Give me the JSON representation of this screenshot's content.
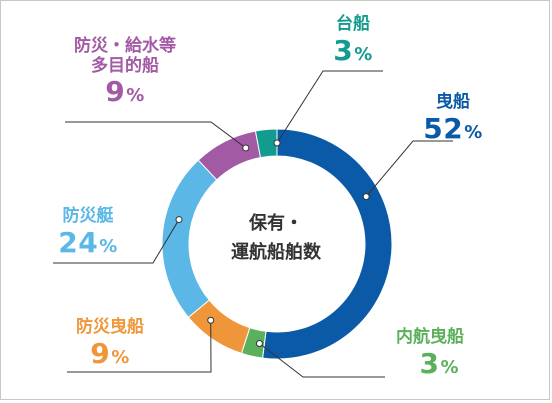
{
  "chart_data": {
    "type": "pie",
    "center_label_lines": [
      "保有・",
      "運航船舶数"
    ],
    "slices": [
      {
        "name": "曳船",
        "value": 52,
        "color": "#0b5aa8"
      },
      {
        "name": "内航曳船",
        "value": 3,
        "color": "#5bb05b"
      },
      {
        "name": "防災曳船",
        "value": 9,
        "color": "#f0963a"
      },
      {
        "name": "防災艇",
        "value": 24,
        "color": "#5bb8e6"
      },
      {
        "name": "防災・給水等\n多目的船",
        "value": 9,
        "color": "#a35aa5"
      },
      {
        "name": "台船",
        "value": 3,
        "color": "#139b8f"
      }
    ],
    "unit": "%",
    "legend": "labels around chart"
  }
}
